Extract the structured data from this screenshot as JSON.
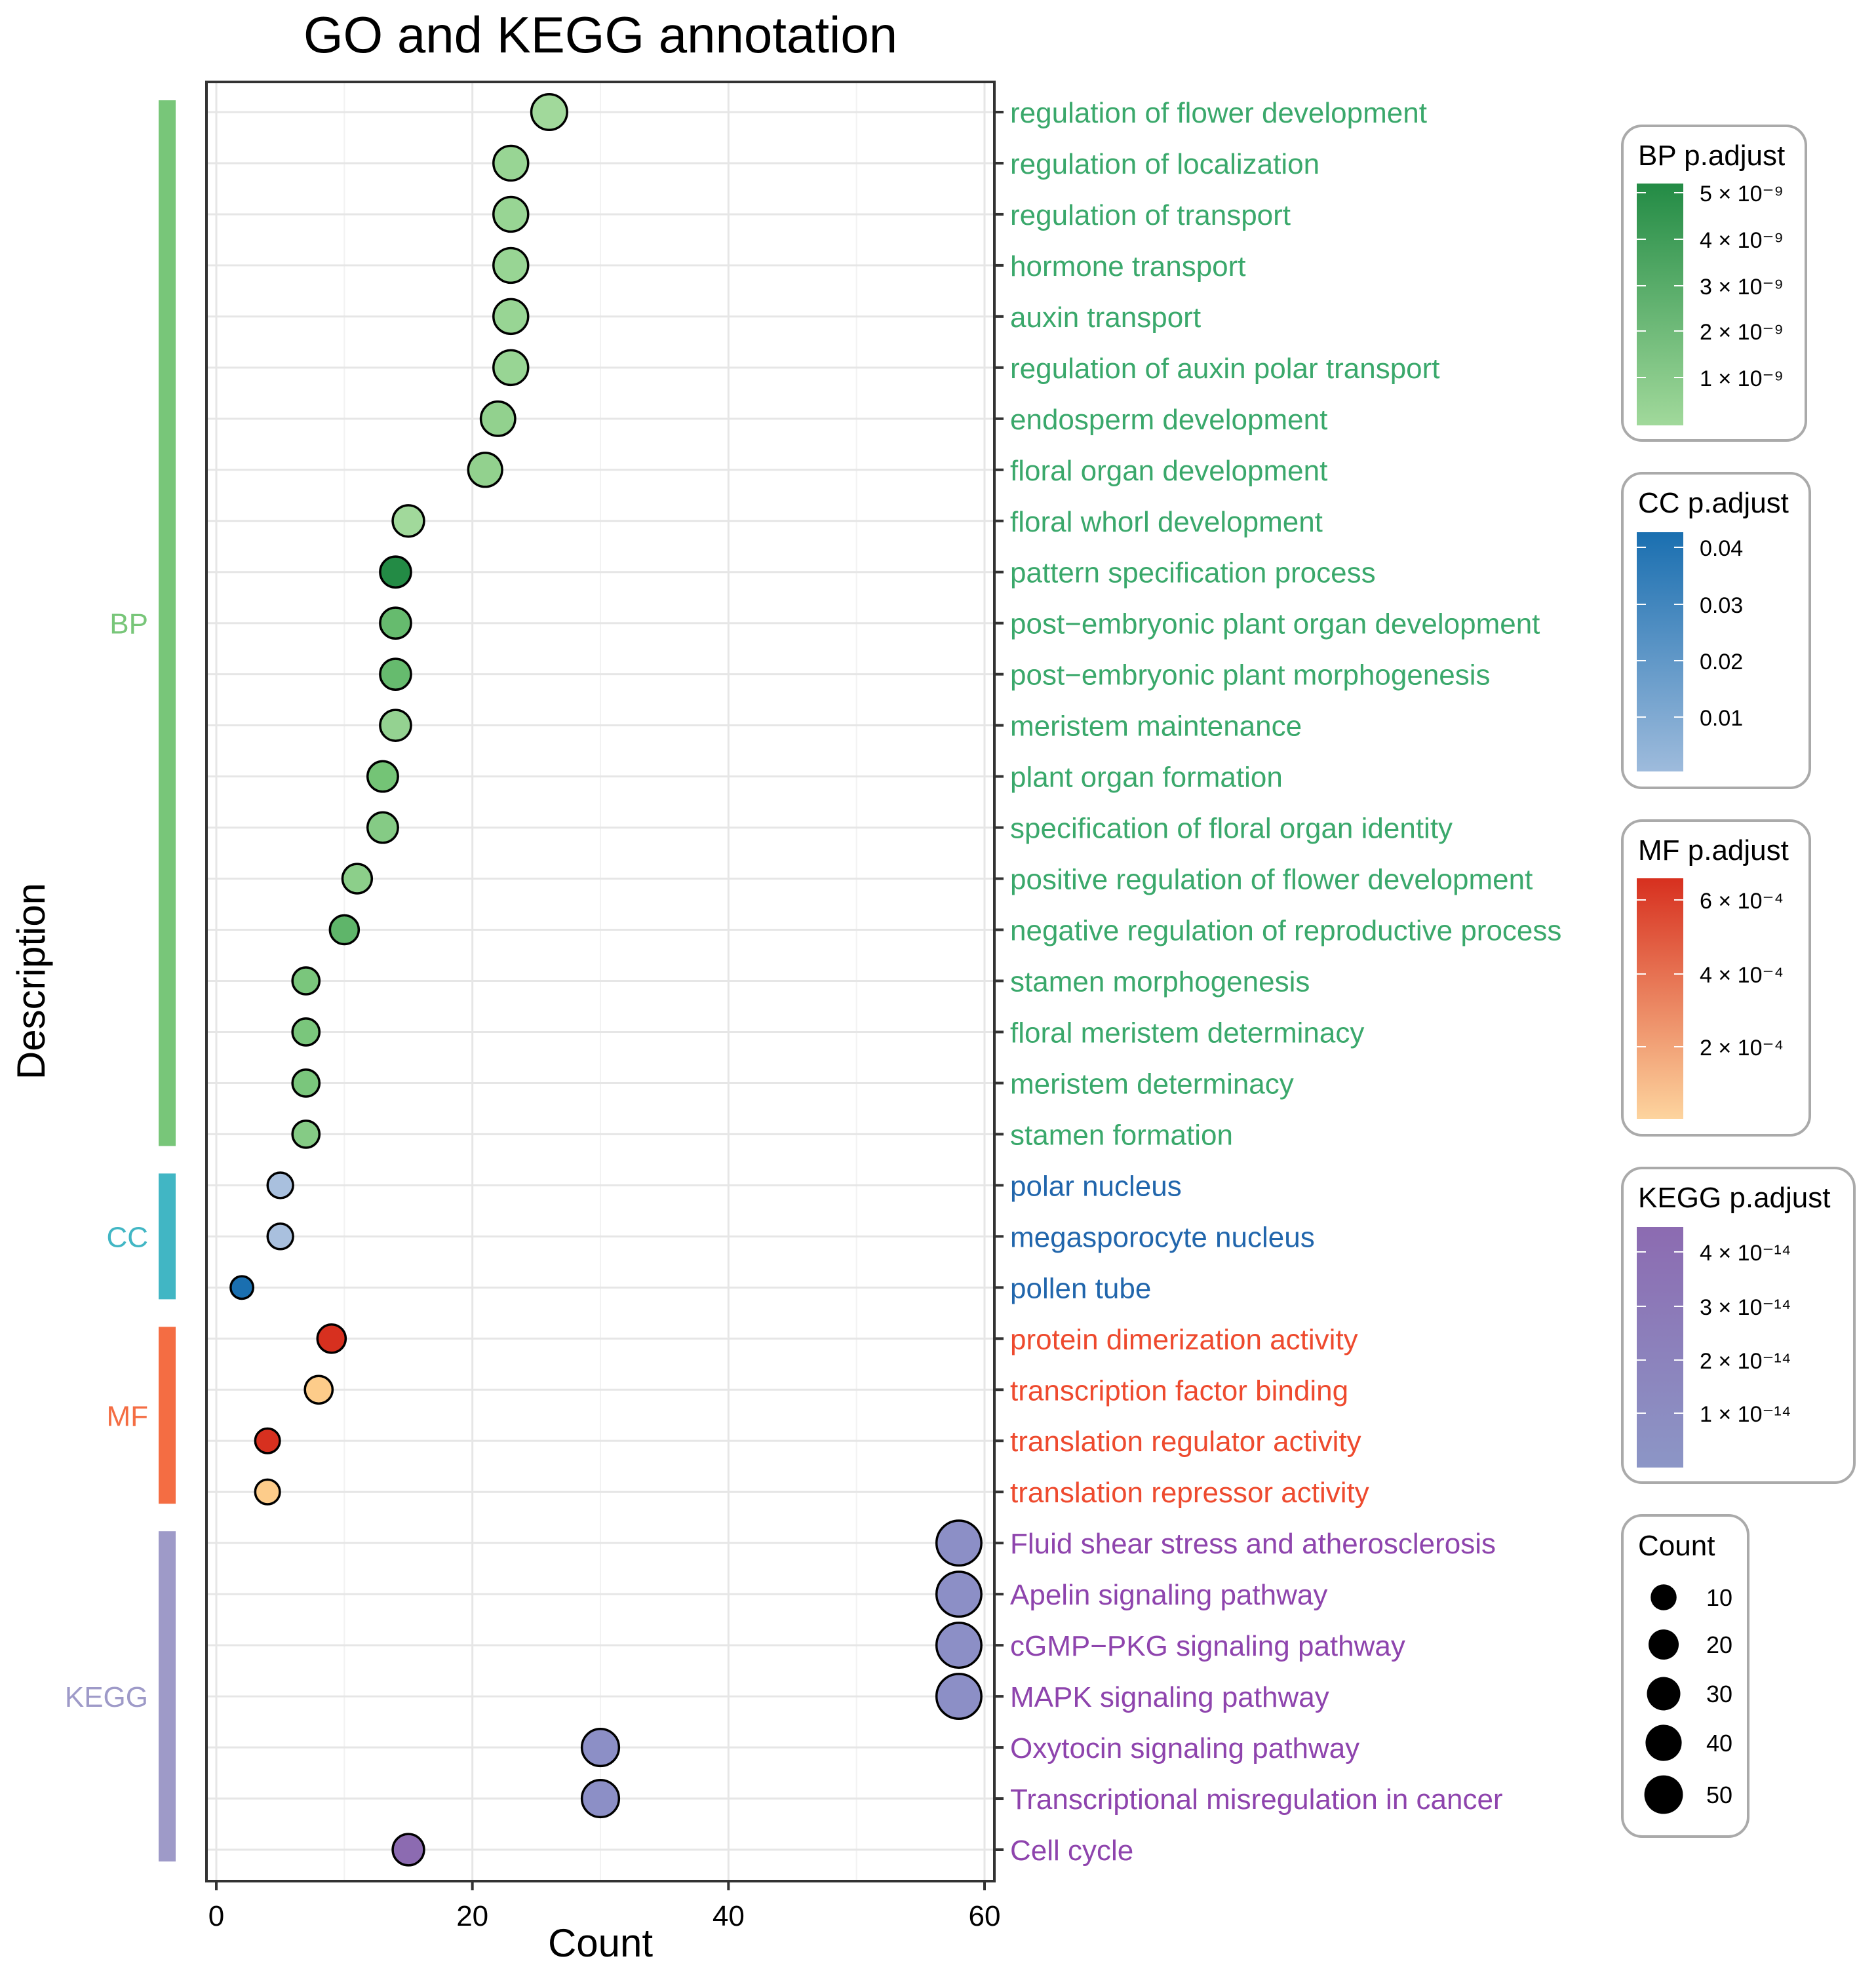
{
  "chart_data": {
    "type": "scatter",
    "title": "GO and KEGG annotation",
    "xlabel": "Count",
    "ylabel": "Description",
    "xlim": [
      -1,
      61
    ],
    "xticks": [
      0,
      20,
      40,
      60
    ],
    "grid": true,
    "legend_placement": "right",
    "groups": [
      {
        "name": "BP",
        "strip_color": "#78c679",
        "label_color": "#3aa86b"
      },
      {
        "name": "CC",
        "strip_color": "#41b6c4",
        "label_color": "#2166ac"
      },
      {
        "name": "MF",
        "strip_color": "#f46d43",
        "label_color": "#ee4a2e"
      },
      {
        "name": "KEGG",
        "strip_color": "#9e9ac8",
        "label_color": "#8e44ad"
      }
    ],
    "points": [
      {
        "group": "BP",
        "description": "regulation of flower development",
        "count": 26,
        "p_adjust": 1.2e-09,
        "color": "#a1d99b"
      },
      {
        "group": "BP",
        "description": "regulation of localization",
        "count": 23,
        "p_adjust": 1.4e-09,
        "color": "#98d594"
      },
      {
        "group": "BP",
        "description": "regulation of transport",
        "count": 23,
        "p_adjust": 1.4e-09,
        "color": "#98d594"
      },
      {
        "group": "BP",
        "description": "hormone transport",
        "count": 23,
        "p_adjust": 1.4e-09,
        "color": "#98d594"
      },
      {
        "group": "BP",
        "description": "auxin transport",
        "count": 23,
        "p_adjust": 1.4e-09,
        "color": "#98d594"
      },
      {
        "group": "BP",
        "description": "regulation of auxin polar transport",
        "count": 23,
        "p_adjust": 1.4e-09,
        "color": "#98d594"
      },
      {
        "group": "BP",
        "description": "endosperm development",
        "count": 22,
        "p_adjust": 1.6e-09,
        "color": "#92d18e"
      },
      {
        "group": "BP",
        "description": "floral organ development",
        "count": 21,
        "p_adjust": 1.6e-09,
        "color": "#92d18e"
      },
      {
        "group": "BP",
        "description": "floral whorl development",
        "count": 15,
        "p_adjust": 1.2e-09,
        "color": "#a1d99b"
      },
      {
        "group": "BP",
        "description": "pattern specification process",
        "count": 14,
        "p_adjust": 5.2e-09,
        "color": "#238b45"
      },
      {
        "group": "BP",
        "description": "post−embryonic plant organ development",
        "count": 14,
        "p_adjust": 3e-09,
        "color": "#66bb6e"
      },
      {
        "group": "BP",
        "description": "post−embryonic plant morphogenesis",
        "count": 14,
        "p_adjust": 3e-09,
        "color": "#66bb6e"
      },
      {
        "group": "BP",
        "description": "meristem maintenance",
        "count": 14,
        "p_adjust": 1.5e-09,
        "color": "#94d291"
      },
      {
        "group": "BP",
        "description": "plant organ formation",
        "count": 13,
        "p_adjust": 2.6e-09,
        "color": "#74c476"
      },
      {
        "group": "BP",
        "description": "specification of floral organ identity",
        "count": 13,
        "p_adjust": 2e-09,
        "color": "#85cb85"
      },
      {
        "group": "BP",
        "description": "positive regulation of flower development",
        "count": 11,
        "p_adjust": 1.8e-09,
        "color": "#8ccf8a"
      },
      {
        "group": "BP",
        "description": "negative regulation of reproductive process",
        "count": 10,
        "p_adjust": 3.2e-09,
        "color": "#5fb56a"
      },
      {
        "group": "BP",
        "description": "stamen morphogenesis",
        "count": 7,
        "p_adjust": 2.4e-09,
        "color": "#7ac67c"
      },
      {
        "group": "BP",
        "description": "floral meristem determinacy",
        "count": 7,
        "p_adjust": 2.4e-09,
        "color": "#7ac67c"
      },
      {
        "group": "BP",
        "description": "meristem determinacy",
        "count": 7,
        "p_adjust": 2.4e-09,
        "color": "#7ac67c"
      },
      {
        "group": "BP",
        "description": "stamen formation",
        "count": 7,
        "p_adjust": 2e-09,
        "color": "#85cb85"
      },
      {
        "group": "CC",
        "description": "polar nucleus",
        "count": 5,
        "p_adjust": 0.008,
        "color": "#a9c0de"
      },
      {
        "group": "CC",
        "description": "megasporocyte nucleus",
        "count": 5,
        "p_adjust": 0.008,
        "color": "#a9c0de"
      },
      {
        "group": "CC",
        "description": "pollen tube",
        "count": 2,
        "p_adjust": 0.045,
        "color": "#1a6fb0"
      },
      {
        "group": "MF",
        "description": "protein dimerization activity",
        "count": 9,
        "p_adjust": 0.00068,
        "color": "#d7301f"
      },
      {
        "group": "MF",
        "description": "transcription factor binding",
        "count": 8,
        "p_adjust": 5e-05,
        "color": "#fdcc8a"
      },
      {
        "group": "MF",
        "description": "translation regulator activity",
        "count": 4,
        "p_adjust": 0.00068,
        "color": "#d7301f"
      },
      {
        "group": "MF",
        "description": "translation repressor activity",
        "count": 4,
        "p_adjust": 5e-05,
        "color": "#fdcc8a"
      },
      {
        "group": "KEGG",
        "description": "Fluid shear stress and atherosclerosis",
        "count": 58,
        "p_adjust": 5e-15,
        "color": "#8c8fc6"
      },
      {
        "group": "KEGG",
        "description": "Apelin signaling pathway",
        "count": 58,
        "p_adjust": 5e-15,
        "color": "#8c8fc6"
      },
      {
        "group": "KEGG",
        "description": "cGMP−PKG signaling pathway",
        "count": 58,
        "p_adjust": 5e-15,
        "color": "#8c8fc6"
      },
      {
        "group": "KEGG",
        "description": "MAPK signaling pathway",
        "count": 58,
        "p_adjust": 5e-15,
        "color": "#8c8fc6"
      },
      {
        "group": "KEGG",
        "description": "Oxytocin signaling pathway",
        "count": 30,
        "p_adjust": 5e-15,
        "color": "#8c8fc6"
      },
      {
        "group": "KEGG",
        "description": "Transcriptional misregulation in cancer",
        "count": 30,
        "p_adjust": 5e-15,
        "color": "#8c8fc6"
      },
      {
        "group": "KEGG",
        "description": "Cell cycle",
        "count": 15,
        "p_adjust": 4.5e-14,
        "color": "#8c6bb1"
      }
    ],
    "legends": [
      {
        "title": "BP p.adjust",
        "from": "#a1d99b",
        "to": "#238b45",
        "ticks": [
          "5 × 10⁻⁹",
          "4 × 10⁻⁹",
          "3 × 10⁻⁹",
          "2 × 10⁻⁹",
          "1 × 10⁻⁹"
        ]
      },
      {
        "title": "CC p.adjust",
        "from": "#9ebbdc",
        "to": "#1a6fb0",
        "ticks": [
          "0.04",
          "0.03",
          "0.02",
          "0.01"
        ]
      },
      {
        "title": "MF p.adjust",
        "from": "#fdd49e",
        "to": "#d7301f",
        "ticks": [
          "6 × 10⁻⁴",
          "4 × 10⁻⁴",
          "2 × 10⁻⁴"
        ]
      },
      {
        "title": "KEGG p.adjust",
        "from": "#8c96c6",
        "to": "#8c6bb1",
        "ticks": [
          "4 × 10⁻¹⁴",
          "3 × 10⁻¹⁴",
          "2 × 10⁻¹⁴",
          "1 × 10⁻¹⁴"
        ]
      }
    ],
    "size_legend": {
      "title": "Count",
      "values": [
        10,
        20,
        30,
        40,
        50
      ]
    }
  }
}
